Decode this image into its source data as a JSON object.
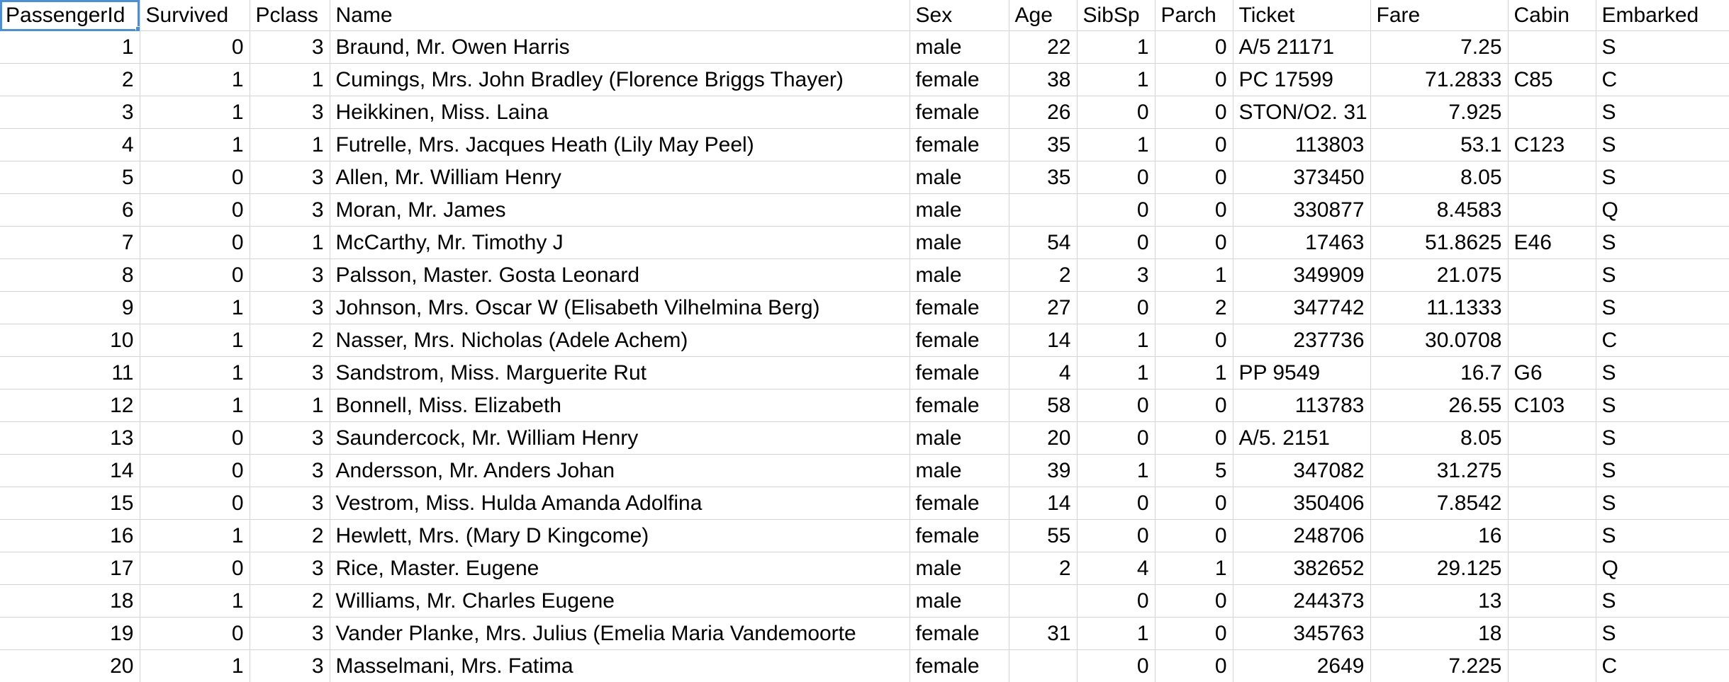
{
  "sheet": {
    "selected_cell": "A1",
    "selection_color": "#4a90d9",
    "headers": [
      "PassengerId",
      "Survived",
      "Pclass",
      "Name",
      "Sex",
      "Age",
      "SibSp",
      "Parch",
      "Ticket",
      "Fare",
      "Cabin",
      "Embarked"
    ],
    "rows": [
      [
        "1",
        "0",
        "3",
        "Braund, Mr. Owen Harris",
        "male",
        "22",
        "1",
        "0",
        "A/5 21171",
        "7.25",
        "",
        "S"
      ],
      [
        "2",
        "1",
        "1",
        "Cumings, Mrs. John Bradley (Florence Briggs Thayer)",
        "female",
        "38",
        "1",
        "0",
        "PC 17599",
        "71.2833",
        "C85",
        "C"
      ],
      [
        "3",
        "1",
        "3",
        "Heikkinen, Miss. Laina",
        "female",
        "26",
        "0",
        "0",
        "STON/O2. 31",
        "7.925",
        "",
        "S"
      ],
      [
        "4",
        "1",
        "1",
        "Futrelle, Mrs. Jacques Heath (Lily May Peel)",
        "female",
        "35",
        "1",
        "0",
        "113803",
        "53.1",
        "C123",
        "S"
      ],
      [
        "5",
        "0",
        "3",
        "Allen, Mr. William Henry",
        "male",
        "35",
        "0",
        "0",
        "373450",
        "8.05",
        "",
        "S"
      ],
      [
        "6",
        "0",
        "3",
        "Moran, Mr. James",
        "male",
        "",
        "0",
        "0",
        "330877",
        "8.4583",
        "",
        "Q"
      ],
      [
        "7",
        "0",
        "1",
        "McCarthy, Mr. Timothy J",
        "male",
        "54",
        "0",
        "0",
        "17463",
        "51.8625",
        "E46",
        "S"
      ],
      [
        "8",
        "0",
        "3",
        "Palsson, Master. Gosta Leonard",
        "male",
        "2",
        "3",
        "1",
        "349909",
        "21.075",
        "",
        "S"
      ],
      [
        "9",
        "1",
        "3",
        "Johnson, Mrs. Oscar W (Elisabeth Vilhelmina Berg)",
        "female",
        "27",
        "0",
        "2",
        "347742",
        "11.1333",
        "",
        "S"
      ],
      [
        "10",
        "1",
        "2",
        "Nasser, Mrs. Nicholas (Adele Achem)",
        "female",
        "14",
        "1",
        "0",
        "237736",
        "30.0708",
        "",
        "C"
      ],
      [
        "11",
        "1",
        "3",
        "Sandstrom, Miss. Marguerite Rut",
        "female",
        "4",
        "1",
        "1",
        "PP 9549",
        "16.7",
        "G6",
        "S"
      ],
      [
        "12",
        "1",
        "1",
        "Bonnell, Miss. Elizabeth",
        "female",
        "58",
        "0",
        "0",
        "113783",
        "26.55",
        "C103",
        "S"
      ],
      [
        "13",
        "0",
        "3",
        "Saundercock, Mr. William Henry",
        "male",
        "20",
        "0",
        "0",
        "A/5. 2151",
        "8.05",
        "",
        "S"
      ],
      [
        "14",
        "0",
        "3",
        "Andersson, Mr. Anders Johan",
        "male",
        "39",
        "1",
        "5",
        "347082",
        "31.275",
        "",
        "S"
      ],
      [
        "15",
        "0",
        "3",
        "Vestrom, Miss. Hulda Amanda Adolfina",
        "female",
        "14",
        "0",
        "0",
        "350406",
        "7.8542",
        "",
        "S"
      ],
      [
        "16",
        "1",
        "2",
        "Hewlett, Mrs. (Mary D Kingcome)",
        "female",
        "55",
        "0",
        "0",
        "248706",
        "16",
        "",
        "S"
      ],
      [
        "17",
        "0",
        "3",
        "Rice, Master. Eugene",
        "male",
        "2",
        "4",
        "1",
        "382652",
        "29.125",
        "",
        "Q"
      ],
      [
        "18",
        "1",
        "2",
        "Williams, Mr. Charles Eugene",
        "male",
        "",
        "0",
        "0",
        "244373",
        "13",
        "",
        "S"
      ],
      [
        "19",
        "0",
        "3",
        "Vander Planke, Mrs. Julius (Emelia Maria Vandemoorte",
        "female",
        "31",
        "1",
        "0",
        "345763",
        "18",
        "",
        "S"
      ],
      [
        "20",
        "1",
        "3",
        "Masselmani, Mrs. Fatima",
        "female",
        "",
        "0",
        "0",
        "2649",
        "7.225",
        "",
        "C"
      ]
    ]
  }
}
